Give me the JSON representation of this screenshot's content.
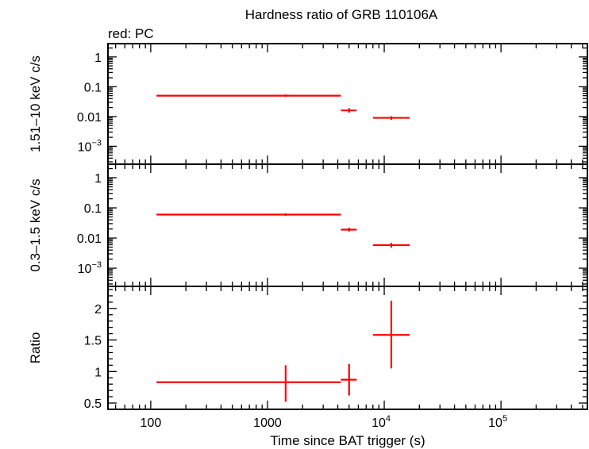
{
  "chart_data": {
    "type": "scatter",
    "title": "Hardness ratio of GRB 110106A",
    "subtitle": "red: PC",
    "xlabel": "Time since BAT trigger (s)",
    "x_scale": "log",
    "xlim": [
      43,
      550000
    ],
    "x_ticks": [
      {
        "value": 100,
        "label": "100"
      },
      {
        "value": 1000,
        "label": "1000"
      },
      {
        "value": 10000,
        "base": "10",
        "exp": "4"
      },
      {
        "value": 100000,
        "base": "10",
        "exp": "5"
      }
    ],
    "series_color": "#ff0000",
    "panels": [
      {
        "ylabel": "1.51–10 keV c/s",
        "y_scale": "log",
        "ylim": [
          0.00025,
          2.8
        ],
        "y_ticks": [
          {
            "value": 1,
            "label": "1"
          },
          {
            "value": 0.1,
            "label": "0.1"
          },
          {
            "value": 0.01,
            "label": "0.01"
          },
          {
            "value": 0.001,
            "base": "10",
            "exp": "−3"
          }
        ],
        "points": [
          {
            "x": 1430,
            "x_lo": 112,
            "x_hi": 4250,
            "y": 0.05,
            "y_lo": 0.046,
            "y_hi": 0.055
          },
          {
            "x": 5000,
            "x_lo": 4250,
            "x_hi": 5800,
            "y": 0.016,
            "y_lo": 0.0135,
            "y_hi": 0.019
          },
          {
            "x": 11500,
            "x_lo": 8000,
            "x_hi": 16500,
            "y": 0.009,
            "y_lo": 0.0078,
            "y_hi": 0.0102
          }
        ]
      },
      {
        "ylabel": "0.3–1.5 keV c/s",
        "y_scale": "log",
        "ylim": [
          0.00025,
          2.8
        ],
        "y_ticks": [
          {
            "value": 1,
            "label": "1"
          },
          {
            "value": 0.1,
            "label": "0.1"
          },
          {
            "value": 0.01,
            "label": "0.01"
          },
          {
            "value": 0.001,
            "base": "10",
            "exp": "−3"
          }
        ],
        "points": [
          {
            "x": 1430,
            "x_lo": 112,
            "x_hi": 4250,
            "y": 0.06,
            "y_lo": 0.055,
            "y_hi": 0.066
          },
          {
            "x": 5000,
            "x_lo": 4250,
            "x_hi": 5800,
            "y": 0.019,
            "y_lo": 0.0165,
            "y_hi": 0.022
          },
          {
            "x": 11500,
            "x_lo": 8000,
            "x_hi": 16500,
            "y": 0.0058,
            "y_lo": 0.0048,
            "y_hi": 0.0069
          }
        ]
      },
      {
        "ylabel": "Ratio",
        "y_scale": "linear",
        "ylim": [
          0.4,
          2.35
        ],
        "y_ticks": [
          {
            "value": 2,
            "label": "2"
          },
          {
            "value": 1.5,
            "label": "1.5"
          },
          {
            "value": 1,
            "label": "1"
          },
          {
            "value": 0.5,
            "label": "0.5"
          }
        ],
        "points": [
          {
            "x": 1430,
            "x_lo": 112,
            "x_hi": 4250,
            "y": 0.83,
            "y_lo": 0.52,
            "y_hi": 1.1
          },
          {
            "x": 5000,
            "x_lo": 4250,
            "x_hi": 5800,
            "y": 0.87,
            "y_lo": 0.62,
            "y_hi": 1.12
          },
          {
            "x": 11500,
            "x_lo": 8000,
            "x_hi": 16500,
            "y": 1.58,
            "y_lo": 1.05,
            "y_hi": 2.12
          }
        ]
      }
    ]
  }
}
